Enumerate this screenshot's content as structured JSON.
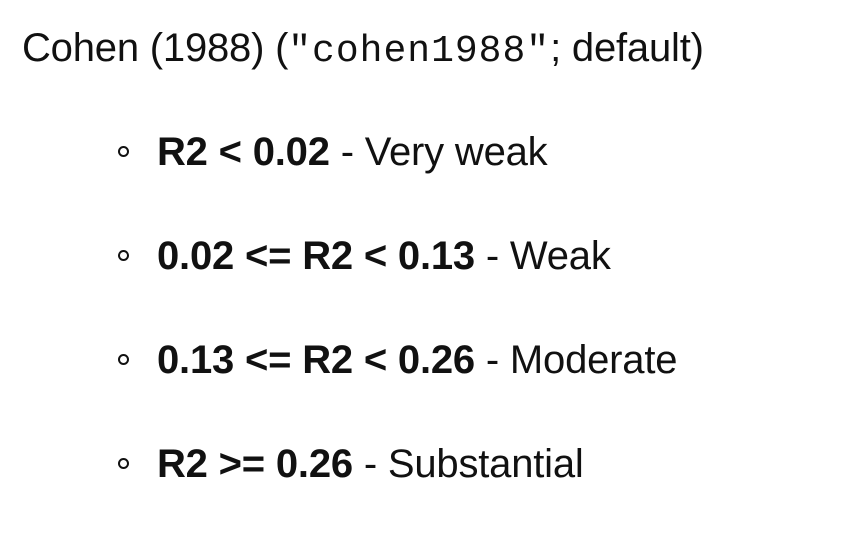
{
  "heading": {
    "prefix": "Cohen (1988) (",
    "code": "\"cohen1988\"",
    "suffix": "; default)"
  },
  "items": [
    {
      "rule": "R2 < 0.02",
      "label": " - Very weak",
      "bullet_icon": "hollow-circle"
    },
    {
      "rule": "0.02 <= R2 < 0.13",
      "label": " - Weak",
      "bullet_icon": "hollow-circle"
    },
    {
      "rule": "0.13 <= R2 < 0.26",
      "label": " - Moderate",
      "bullet_icon": "hollow-circle"
    },
    {
      "rule": "R2 >= 0.26",
      "label": " - Substantial",
      "bullet_icon": "hollow-circle"
    }
  ]
}
